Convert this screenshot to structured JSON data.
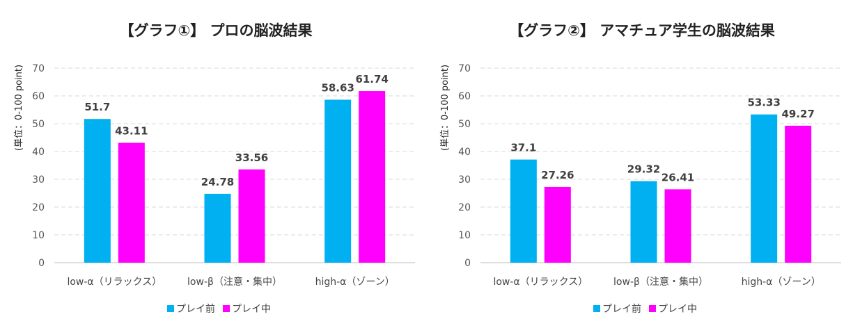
{
  "chart_data": [
    {
      "type": "bar",
      "title": "【グラフ①】 プロの脳波結果",
      "ylabel": "(単位：0-100 point)",
      "xlabel": "",
      "ylim": [
        0,
        70
      ],
      "yticks": [
        "0",
        "10",
        "20",
        "30",
        "40",
        "50",
        "60",
        "70"
      ],
      "grid": true,
      "legend_position": "bottom",
      "categories": [
        "low-α（リラックス）",
        "low-β（注意・集中）",
        "high-α（ゾーン）"
      ],
      "series": [
        {
          "name": "プレイ前",
          "color": "#00b0f0",
          "values": [
            51.7,
            24.78,
            58.63
          ],
          "labels": [
            "51.7",
            "24.78",
            "58.63"
          ]
        },
        {
          "name": "プレイ中",
          "color": "#ff00ff",
          "values": [
            43.11,
            33.56,
            61.74
          ],
          "labels": [
            "43.11",
            "33.56",
            "61.74"
          ]
        }
      ]
    },
    {
      "type": "bar",
      "title": "【グラフ②】 アマチュア学生の脳波結果",
      "ylabel": "(単位：0-100 point)",
      "xlabel": "",
      "ylim": [
        0,
        70
      ],
      "yticks": [
        "0",
        "10",
        "20",
        "30",
        "40",
        "50",
        "60",
        "70"
      ],
      "grid": true,
      "legend_position": "bottom",
      "categories": [
        "low-α（リラックス）",
        "low-β（注意・集中）",
        "high-α（ゾーン）"
      ],
      "series": [
        {
          "name": "プレイ前",
          "color": "#00b0f0",
          "values": [
            37.1,
            29.32,
            53.33
          ],
          "labels": [
            "37.1",
            "29.32",
            "53.33"
          ]
        },
        {
          "name": "プレイ中",
          "color": "#ff00ff",
          "values": [
            27.26,
            26.41,
            49.27
          ],
          "labels": [
            "27.26",
            "26.41",
            "49.27"
          ]
        }
      ]
    }
  ]
}
